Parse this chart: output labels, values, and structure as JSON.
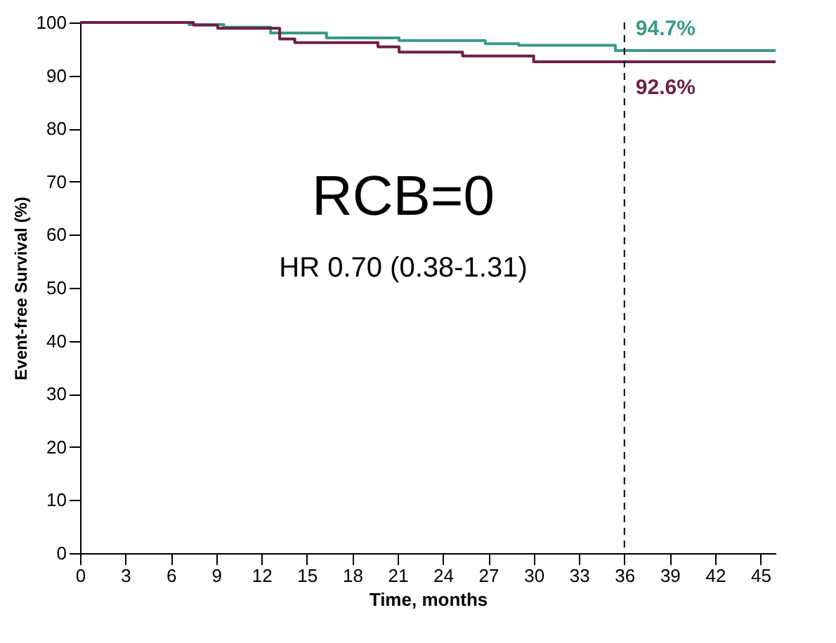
{
  "chart_data": {
    "type": "step",
    "xlabel": "Time, months",
    "ylabel": "Event-free Survival (%)",
    "xlim": [
      0,
      46
    ],
    "ylim": [
      0,
      100
    ],
    "xticks": [
      0,
      3,
      6,
      9,
      12,
      15,
      18,
      21,
      24,
      27,
      30,
      33,
      36,
      39,
      42,
      45
    ],
    "yticks": [
      0,
      10,
      20,
      30,
      40,
      50,
      60,
      70,
      80,
      90,
      100
    ],
    "series": [
      {
        "color": "#3a9a85",
        "x": [
          0,
          7.2,
          9.5,
          12.6,
          16.3,
          21.1,
          26.8,
          29,
          35.4,
          46
        ],
        "values": [
          100,
          99.6,
          99.1,
          98,
          97.1,
          96.6,
          96,
          95.7,
          94.7,
          94.7
        ]
      },
      {
        "color": "#6e1f45",
        "x": [
          0,
          7.5,
          9.1,
          13.2,
          14.2,
          19.7,
          21.1,
          25.3,
          30,
          46
        ],
        "values": [
          100,
          99.5,
          98.9,
          96.9,
          96.2,
          95.4,
          94.4,
          93.7,
          92.6,
          92.6
        ]
      }
    ],
    "ref_lines": [
      {
        "axis": "x",
        "value": 36,
        "line_style": "dashed",
        "color": "#000000"
      }
    ],
    "annotations": [
      {
        "text": "94.7%",
        "x": 36,
        "y": 94.7
      },
      {
        "text": "92.6%",
        "x": 36,
        "y": 92.6
      },
      "RCB=0",
      "HR 0.70 (0.38-1.31)"
    ],
    "grid": false
  }
}
